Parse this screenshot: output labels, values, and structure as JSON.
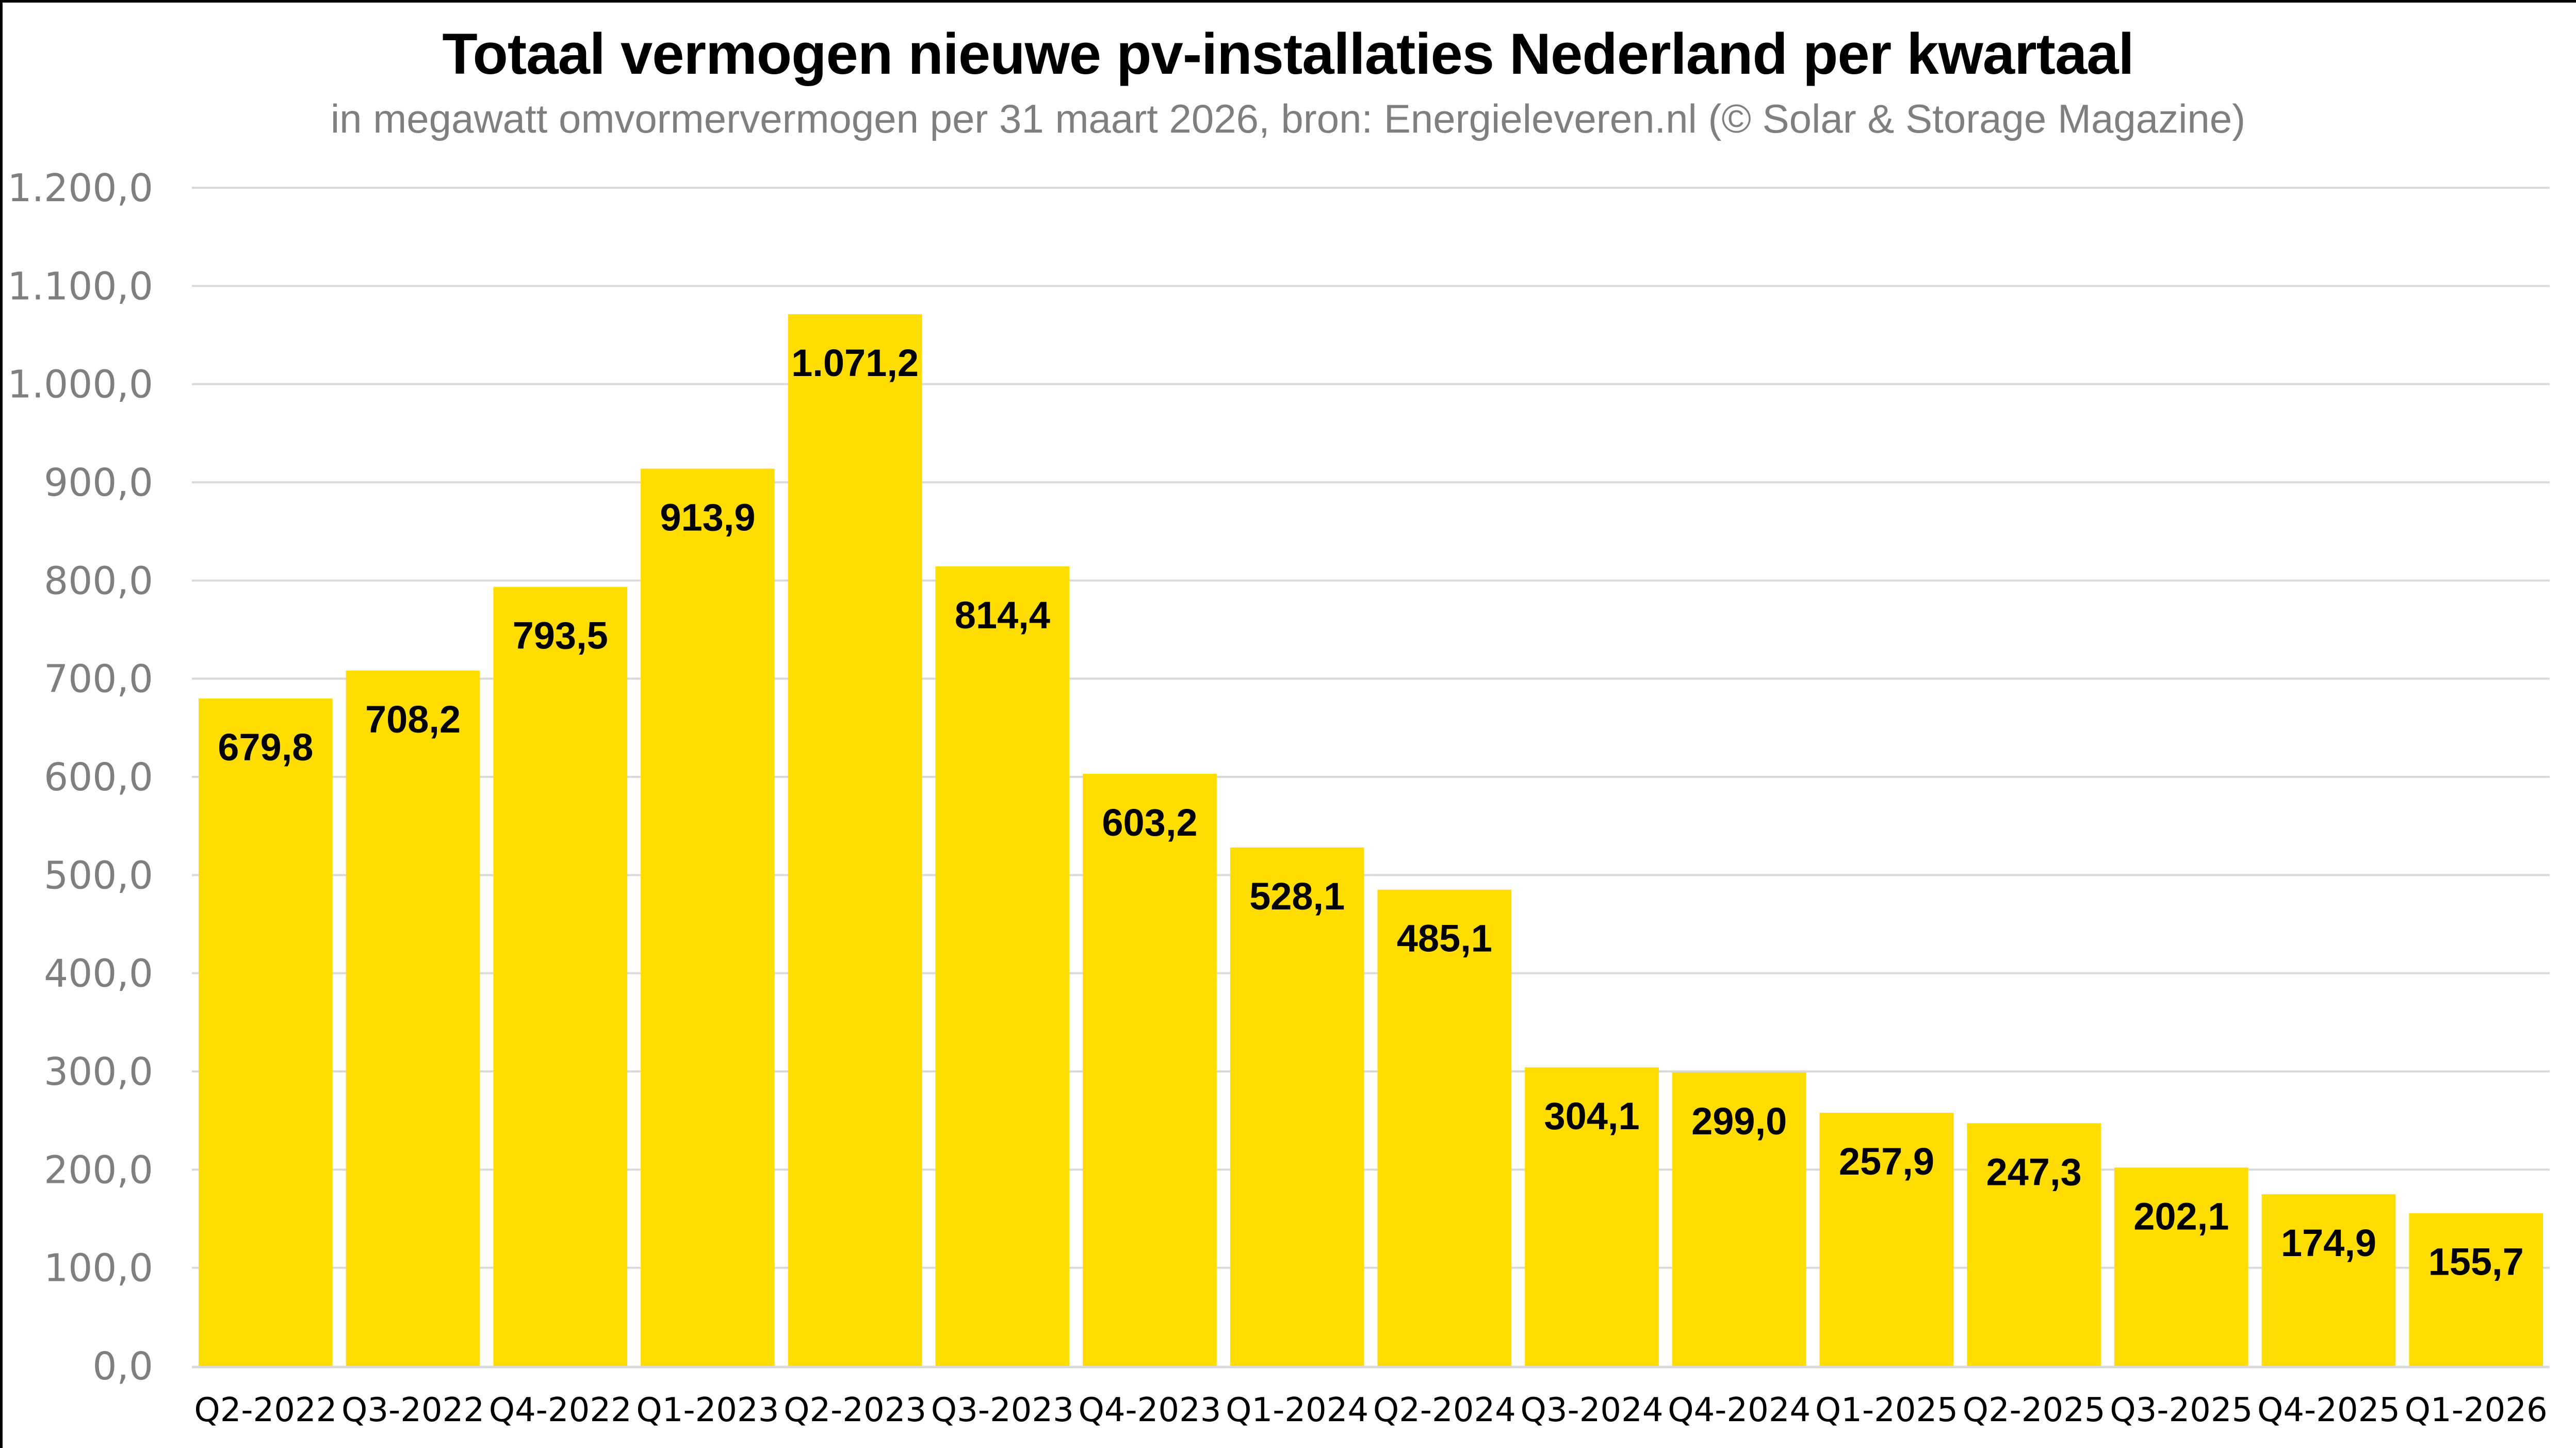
{
  "header": {
    "title": "Totaal vermogen nieuwe pv-installaties Nederland per kwartaal",
    "subtitle": "in megawatt omvormervermogen per 31 maart 2026, bron: Energieleveren.nl (© Solar & Storage Magazine)"
  },
  "colors": {
    "bar": "#FFDD00",
    "gridline": "#D9D9D9",
    "axis_text": "#7F7F7F",
    "label_text": "#000000"
  },
  "chart_data": {
    "type": "bar",
    "title": "Totaal vermogen nieuwe pv-installaties Nederland per kwartaal",
    "subtitle": "in megawatt omvormervermogen per 31 maart 2026, bron: Energieleveren.nl (© Solar & Storage Magazine)",
    "xlabel": "",
    "ylabel": "",
    "ylim": [
      0,
      1200
    ],
    "yticks": [
      0,
      100,
      200,
      300,
      400,
      500,
      600,
      700,
      800,
      900,
      1000,
      1100,
      1200
    ],
    "ytick_labels": [
      "0,0",
      "100,0",
      "200,0",
      "300,0",
      "400,0",
      "500,0",
      "600,0",
      "700,0",
      "800,0",
      "900,0",
      "1.000,0",
      "1.100,0",
      "1.200,0"
    ],
    "grid": true,
    "legend": "none",
    "categories": [
      "Q2-2022",
      "Q3-2022",
      "Q4-2022",
      "Q1-2023",
      "Q2-2023",
      "Q3-2023",
      "Q4-2023",
      "Q1-2024",
      "Q2-2024",
      "Q3-2024",
      "Q4-2024",
      "Q1-2025",
      "Q2-2025",
      "Q3-2025",
      "Q4-2025",
      "Q1-2026"
    ],
    "values": [
      679.8,
      708.2,
      793.5,
      913.9,
      1071.2,
      814.4,
      603.2,
      528.1,
      485.1,
      304.1,
      299.0,
      257.9,
      247.3,
      202.1,
      174.9,
      155.7
    ],
    "value_labels": [
      "679,8",
      "708,2",
      "793,5",
      "913,9",
      "1.071,2",
      "814,4",
      "603,2",
      "528,1",
      "485,1",
      "304,1",
      "299,0",
      "257,9",
      "247,3",
      "202,1",
      "174,9",
      "155,7"
    ]
  }
}
